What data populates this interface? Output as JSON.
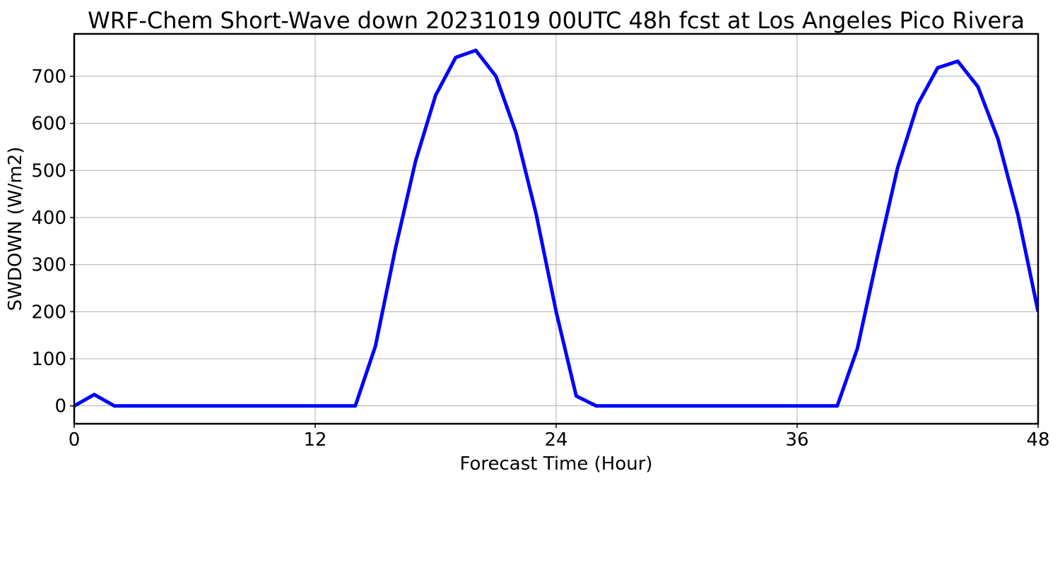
{
  "chart_data": {
    "type": "line",
    "title": "WRF-Chem Short-Wave down  20231019 00UTC 48h fcst at Los Angeles Pico Rivera",
    "xlabel": "Forecast Time (Hour)",
    "ylabel": "SWDOWN  (W/m2)",
    "xlim": [
      0,
      48
    ],
    "ylim": [
      -38,
      790
    ],
    "xticks": [
      0,
      12,
      24,
      36,
      48
    ],
    "yticks": [
      0,
      100,
      200,
      300,
      400,
      500,
      600,
      700
    ],
    "grid": true,
    "series": [
      {
        "color": "#0000ff",
        "x": [
          0,
          1,
          2,
          3,
          4,
          5,
          6,
          7,
          8,
          9,
          10,
          11,
          12,
          13,
          14,
          15,
          16,
          17,
          18,
          19,
          20,
          21,
          22,
          23,
          24,
          25,
          26,
          27,
          28,
          29,
          30,
          31,
          32,
          33,
          34,
          35,
          36,
          37,
          38,
          39,
          40,
          41,
          42,
          43,
          44,
          45,
          46,
          47,
          48
        ],
        "y": [
          0,
          24,
          0,
          0,
          0,
          0,
          0,
          0,
          0,
          0,
          0,
          0,
          0,
          0,
          0,
          127,
          335,
          520,
          660,
          740,
          755,
          700,
          580,
          408,
          200,
          21,
          0,
          0,
          0,
          0,
          0,
          0,
          0,
          0,
          0,
          0,
          0,
          0,
          0,
          122,
          318,
          505,
          640,
          718,
          732,
          678,
          567,
          405,
          200
        ]
      }
    ]
  }
}
